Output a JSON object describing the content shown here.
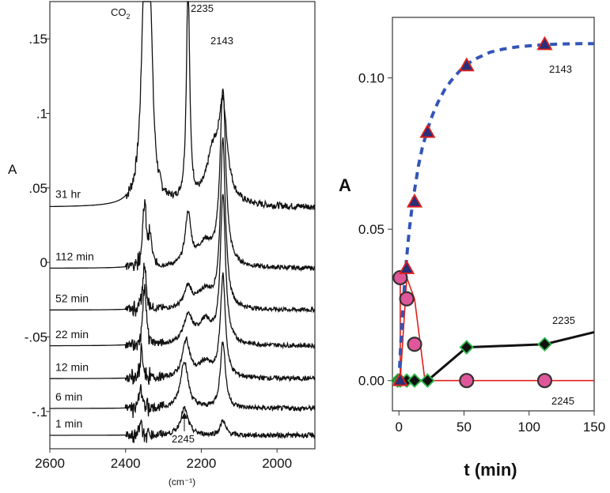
{
  "colors": {
    "spectrum": "#111111",
    "series_2143": "#3355b8",
    "series_2143_marker": "#2a2f7a",
    "marker_edge_red": "#e0201a",
    "series_2235": "#111111",
    "series_2235_marker_edge": "#2fb84a",
    "series_2245": "#e0201a",
    "series_2245_marker": "#e0569a"
  },
  "chart_data": [
    {
      "type": "line",
      "title": "",
      "ylabel": "A",
      "xlabel": "(cm⁻¹)",
      "xlim": [
        2600,
        1900
      ],
      "ylim": [
        -0.125,
        0.175
      ],
      "xticks": [
        2600,
        2400,
        2200,
        2000
      ],
      "xtick_labels": [
        "2600",
        "2400",
        "2200",
        "2000"
      ],
      "yticks": [
        0.15,
        0.1,
        0.05,
        0,
        -0.05,
        -0.1
      ],
      "ytick_labels": [
        ".15",
        ".1",
        ".05",
        "0",
        "-.05",
        "-.1"
      ],
      "peak_labels": [
        "CO₂",
        "2235",
        "2143",
        "2245"
      ],
      "co2_label": {
        "main": "CO",
        "sub": "2"
      },
      "series": [
        {
          "name": "31 hr",
          "baseline": 0.037,
          "peaks": [
            [
              2349,
              0.16,
              10
            ],
            [
              2335,
              0.1,
              8
            ],
            [
              2235,
              0.15,
              5
            ],
            [
              2143,
              0.062,
              14
            ],
            [
              2170,
              0.03,
              20
            ]
          ],
          "noise": 0.0045
        },
        {
          "name": "112 min",
          "baseline": -0.004,
          "peaks": [
            [
              2350,
              0.042,
              6
            ],
            [
              2335,
              0.018,
              5
            ],
            [
              2235,
              0.034,
              9
            ],
            [
              2143,
              0.118,
              9
            ],
            [
              2190,
              0.015,
              25
            ]
          ],
          "noise": 0.003
        },
        {
          "name": "52 min",
          "baseline": -0.032,
          "peaks": [
            [
              2350,
              0.03,
              5
            ],
            [
              2235,
              0.014,
              12
            ],
            [
              2143,
              0.113,
              8
            ],
            [
              2190,
              0.012,
              24
            ]
          ],
          "noise": 0.003
        },
        {
          "name": "22 min",
          "baseline": -0.056,
          "peaks": [
            [
              2350,
              0.04,
              5
            ],
            [
              2235,
              0.018,
              15
            ],
            [
              2143,
              0.1,
              8
            ],
            [
              2190,
              0.015,
              22
            ]
          ],
          "noise": 0.003
        },
        {
          "name": "12 min",
          "baseline": -0.078,
          "peaks": [
            [
              2358,
              0.018,
              4
            ],
            [
              2240,
              0.025,
              12
            ],
            [
              2143,
              0.068,
              8
            ],
            [
              2190,
              0.01,
              20
            ]
          ],
          "noise": 0.0032
        },
        {
          "name": "6 min",
          "baseline": -0.098,
          "peaks": [
            [
              2360,
              0.014,
              4
            ],
            [
              2245,
              0.032,
              12
            ],
            [
              2143,
              0.045,
              8
            ]
          ],
          "noise": 0.0033
        },
        {
          "name": "1 min",
          "baseline": -0.116,
          "peaks": [
            [
              2360,
              0.01,
              4
            ],
            [
              2245,
              0.018,
              12
            ],
            [
              2143,
              0.01,
              8
            ]
          ],
          "noise": 0.0033
        }
      ]
    },
    {
      "type": "line",
      "title": "",
      "xlabel": "t (min)",
      "ylabel": "A",
      "xlim": [
        -5,
        150
      ],
      "ylim": [
        -0.01,
        0.12
      ],
      "xticks": [
        0,
        50,
        100,
        150
      ],
      "xtick_labels": [
        "0",
        "50",
        "100",
        "150"
      ],
      "yticks": [
        0,
        0.05,
        0.1
      ],
      "ytick_labels": [
        "0.00",
        "0.05",
        "0.10"
      ],
      "series": [
        {
          "name": "2143",
          "style": "dashed",
          "marker": "triangle",
          "x": [
            1,
            6,
            12,
            22,
            52,
            112
          ],
          "y": [
            0.0,
            0.037,
            0.059,
            0.082,
            0.104,
            0.111
          ],
          "fit_x": [
            0,
            2,
            4,
            6,
            8,
            10,
            12,
            15,
            18,
            22,
            26,
            30,
            35,
            40,
            46,
            52,
            60,
            70,
            80,
            90,
            100,
            112,
            125,
            140,
            150
          ],
          "fit_y": [
            0.0,
            0.017,
            0.03,
            0.041,
            0.05,
            0.057,
            0.063,
            0.071,
            0.077,
            0.083,
            0.088,
            0.092,
            0.096,
            0.099,
            0.102,
            0.1045,
            0.1065,
            0.1085,
            0.1095,
            0.1102,
            0.1106,
            0.111,
            0.1112,
            0.1113,
            0.1113
          ]
        },
        {
          "name": "2235",
          "style": "solid",
          "marker": "diamond",
          "x": [
            -1,
            1,
            6,
            12,
            22,
            52,
            112
          ],
          "y": [
            0.0,
            0.0,
            0.0,
            0.0,
            0.0,
            0.011,
            0.012
          ],
          "line_x": [
            -1,
            1,
            6,
            12,
            22,
            52,
            112,
            150
          ],
          "line_y": [
            0.0,
            0.0,
            0.0,
            0.0,
            0.0,
            0.011,
            0.012,
            0.016
          ]
        },
        {
          "name": "2245",
          "style": "solid",
          "marker": "circle",
          "x": [
            1,
            6,
            12,
            52,
            112
          ],
          "y": [
            0.034,
            0.027,
            0.012,
            0.0,
            0.0
          ],
          "line_x": [
            1,
            1,
            6,
            12,
            20,
            52,
            112,
            150
          ],
          "line_y": [
            0.034,
            0.0,
            0.034,
            0.027,
            0.0,
            0.0,
            0.0,
            0.0
          ]
        }
      ]
    }
  ]
}
